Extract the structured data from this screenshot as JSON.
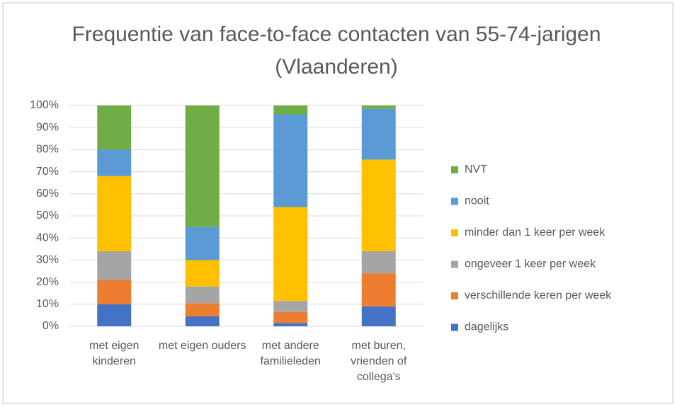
{
  "chart_data": {
    "type": "stacked_bar_100",
    "title": "Frequentie van face-to-face contacten van 55-74-jarigen (Vlaanderen)",
    "categories": [
      "met eigen kinderen",
      "met eigen ouders",
      "met andere familieleden",
      "met buren, vrienden of collega's"
    ],
    "series": [
      {
        "name": "dagelijks",
        "color": "#4472c4",
        "values": [
          10,
          4.5,
          1.5,
          9
        ]
      },
      {
        "name": "verschillende keren per week",
        "color": "#ed7d31",
        "values": [
          11,
          6,
          5,
          15
        ]
      },
      {
        "name": "ongeveer 1 keer per week",
        "color": "#a5a5a5",
        "values": [
          13,
          7.5,
          5,
          10
        ]
      },
      {
        "name": "minder dan 1 keer per week",
        "color": "#ffc000",
        "values": [
          34,
          12,
          42.5,
          41.5
        ]
      },
      {
        "name": "nooit",
        "color": "#5b9bd5",
        "values": [
          12,
          15,
          42,
          23
        ]
      },
      {
        "name": "NVT",
        "color": "#70ad47",
        "values": [
          20,
          55,
          4,
          1.5
        ]
      }
    ],
    "ylim": [
      0,
      100
    ],
    "yticks": [
      {
        "value": 0,
        "label": "0%"
      },
      {
        "value": 10,
        "label": "10%"
      },
      {
        "value": 20,
        "label": "20%"
      },
      {
        "value": 30,
        "label": "30%"
      },
      {
        "value": 40,
        "label": "40%"
      },
      {
        "value": 50,
        "label": "50%"
      },
      {
        "value": 60,
        "label": "60%"
      },
      {
        "value": 70,
        "label": "70%"
      },
      {
        "value": 80,
        "label": "80%"
      },
      {
        "value": 90,
        "label": "90%"
      },
      {
        "value": 100,
        "label": "100%"
      }
    ],
    "grid": true,
    "legend": "right"
  }
}
